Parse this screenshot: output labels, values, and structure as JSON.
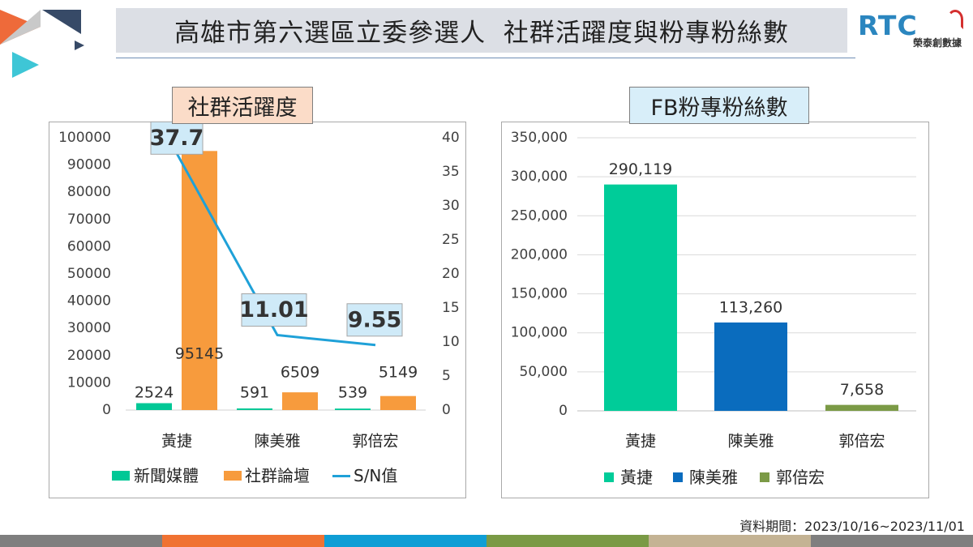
{
  "header": {
    "title": "高雄市第六選區立委參選人  社群活躍度與粉專粉絲數",
    "logo_text": "RTC",
    "logo_subtitle": "榮泰創數據"
  },
  "chart_data": [
    {
      "type": "bar",
      "title": "社群活躍度",
      "categories": [
        "黃捷",
        "陳美雅",
        "郭倍宏"
      ],
      "series": [
        {
          "name": "新聞媒體",
          "type": "bar",
          "axis": "left",
          "values": [
            2524,
            591,
            539
          ],
          "color": "#00c896"
        },
        {
          "name": "社群論壇",
          "type": "bar",
          "axis": "left",
          "values": [
            95145,
            6509,
            5149
          ],
          "color": "#f79b3d"
        },
        {
          "name": "S/N值",
          "type": "line",
          "axis": "right",
          "values": [
            37.7,
            11.01,
            9.55
          ],
          "color": "#1fa1d8"
        }
      ],
      "ylim": [
        0,
        100000
      ],
      "y2lim": [
        0,
        40
      ],
      "ytick_labels": [
        "0",
        "10000",
        "20000",
        "30000",
        "40000",
        "50000",
        "60000",
        "70000",
        "80000",
        "90000",
        "100000"
      ],
      "y2tick_labels": [
        "0",
        "5",
        "10",
        "15",
        "20",
        "25",
        "30",
        "35",
        "40"
      ],
      "grid": false,
      "legend": "bottom"
    },
    {
      "type": "bar",
      "title": "FB粉專粉絲數",
      "categories": [
        "黃捷",
        "陳美雅",
        "郭倍宏"
      ],
      "values": [
        290119,
        113260,
        7658
      ],
      "colors": [
        "#00cc99",
        "#0a6cbe",
        "#7b9a46"
      ],
      "ylim": [
        0,
        350000
      ],
      "ytick_labels": [
        "0",
        "50,000",
        "100,000",
        "150,000",
        "200,000",
        "250,000",
        "300,000",
        "350,000"
      ],
      "grid": true,
      "legend": "bottom"
    }
  ],
  "footer": {
    "date_range": "資料期間：2023/10/16~2023/11/01"
  },
  "bottom_bar_colors": [
    "#7f7f7f",
    "#f07232",
    "#0f9ed5",
    "#7a9a45",
    "#c4b394",
    "#7f7f7f"
  ]
}
